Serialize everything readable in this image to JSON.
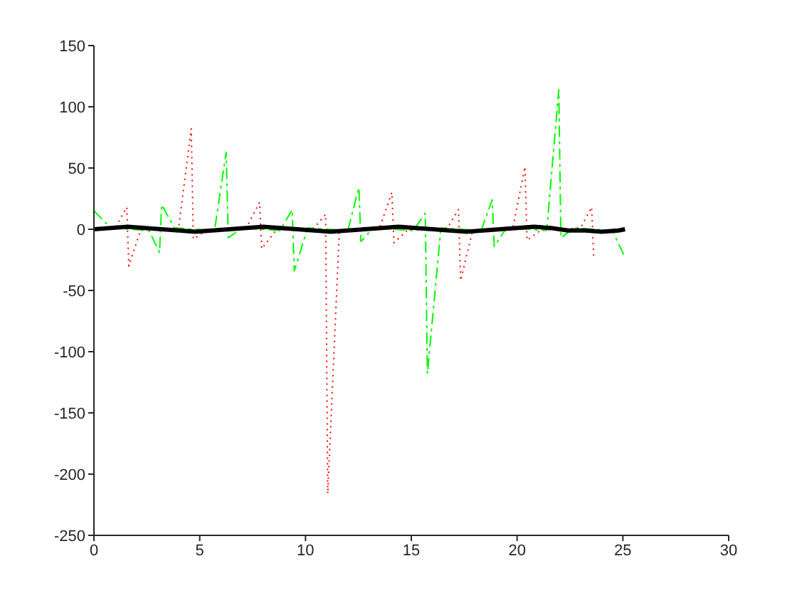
{
  "chart_data": {
    "type": "line",
    "xlim": [
      0,
      30
    ],
    "xticks": [
      0,
      5,
      10,
      15,
      20,
      25,
      30
    ],
    "ylim": [
      -250,
      150
    ],
    "yticks": [
      -250,
      -200,
      -150,
      -100,
      -50,
      0,
      50,
      100,
      150
    ],
    "grid": false,
    "legend": false,
    "marker": "none",
    "series": [
      {
        "color": "#ff0000",
        "line_style": "dotted",
        "x": [
          0,
          1.0,
          1.55,
          1.65,
          2.2,
          4.0,
          4.6,
          4.7,
          5.3,
          7.2,
          7.83,
          7.93,
          8.6,
          10.4,
          10.95,
          11.05,
          11.6,
          13.5,
          14.08,
          14.18,
          14.8,
          16.7,
          17.23,
          17.33,
          17.9,
          19.8,
          20.37,
          20.47,
          21.1,
          23.0,
          23.52,
          23.62
        ],
        "values": [
          0,
          1,
          18,
          -30,
          -1,
          1,
          82,
          -8,
          -1,
          1,
          22,
          -16,
          -1,
          1,
          12,
          -216,
          -1,
          1,
          30,
          -11,
          -1,
          1,
          16,
          -42,
          -1,
          1,
          51,
          -9,
          -1,
          1,
          18,
          -22
        ]
      },
      {
        "color": "#00ff00",
        "line_style": "dashed",
        "x": [
          0,
          0.8,
          2.6,
          3.1,
          3.2,
          3.8,
          5.7,
          6.25,
          6.35,
          7.0,
          8.8,
          9.37,
          9.47,
          10.1,
          12.0,
          12.52,
          12.62,
          13.2,
          15.1,
          15.66,
          15.76,
          16.4,
          18.3,
          18.82,
          18.92,
          19.5,
          21.4,
          21.97,
          22.07,
          22.7,
          24.5,
          25.1
        ],
        "values": [
          15,
          1,
          -1,
          -19,
          20,
          1,
          -1,
          63,
          -7,
          1,
          -1,
          16,
          -34,
          1,
          -1,
          34,
          -10,
          1,
          -1,
          13,
          -118,
          1,
          -1,
          24,
          -14,
          1,
          -1,
          114,
          -7,
          1,
          -1,
          -23
        ]
      },
      {
        "color": "#000000",
        "line_style": "solid",
        "x": [
          0,
          0.8,
          1.6,
          2.4,
          3.2,
          4.0,
          4.8,
          5.6,
          6.4,
          7.2,
          8.0,
          8.8,
          9.6,
          10.4,
          11.2,
          12.0,
          12.8,
          13.6,
          14.4,
          15.2,
          16.0,
          16.8,
          17.6,
          18.4,
          19.2,
          20.0,
          20.8,
          21.6,
          22.4,
          23.2,
          24.0,
          24.8,
          25.1
        ],
        "values": [
          0,
          1,
          2,
          1,
          0,
          -1,
          -2,
          -1,
          0,
          1,
          2,
          1,
          0,
          -1,
          -2,
          -1,
          0,
          1,
          2,
          1,
          0,
          -1,
          -2,
          -1,
          0,
          1,
          2,
          1,
          -1,
          -1,
          -2,
          -1,
          0
        ]
      }
    ]
  }
}
